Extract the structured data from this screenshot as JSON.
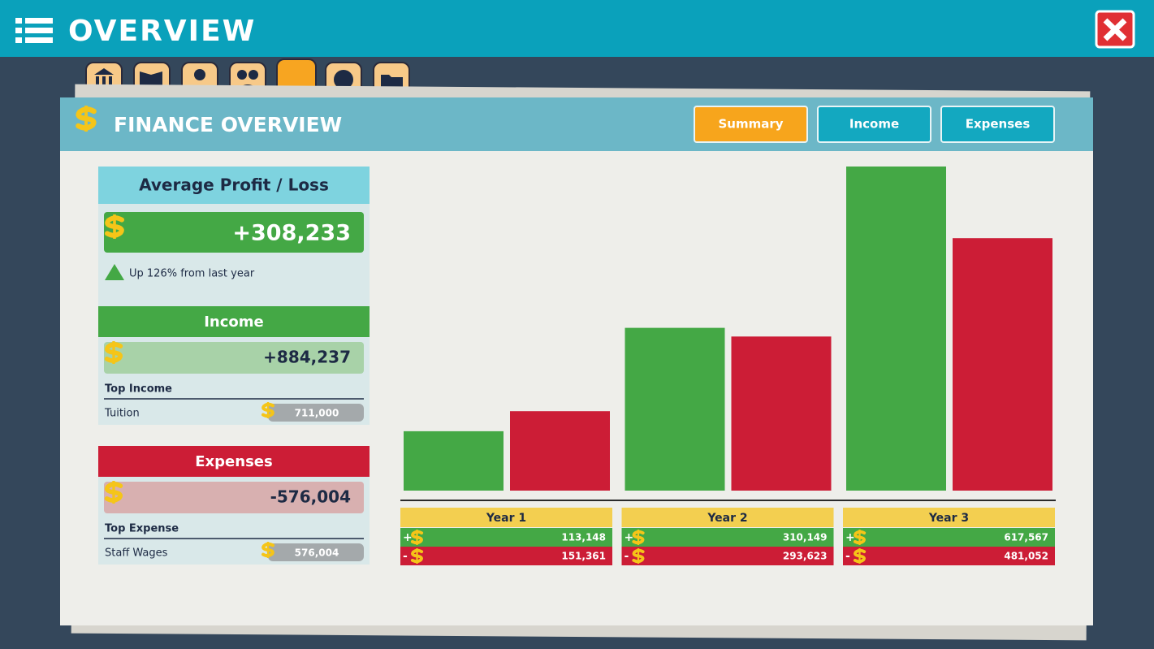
{
  "header": {
    "title": "OVERVIEW"
  },
  "panel": {
    "title": "FINANCE OVERVIEW",
    "tabs": [
      "Summary",
      "Income",
      "Expenses"
    ],
    "active_tab": 0
  },
  "summary": {
    "profit": {
      "title": "Average Profit / Loss",
      "value": "+308,233",
      "change": "Up 126% from last year"
    },
    "income": {
      "title": "Income",
      "value": "+884,237",
      "top_label": "Top Income",
      "top_name": "Tuition",
      "top_value": "711,000"
    },
    "expenses": {
      "title": "Expenses",
      "value": "-576,004",
      "top_label": "Top Expense",
      "top_name": "Staff Wages",
      "top_value": "576,004"
    }
  },
  "chart_data": {
    "type": "bar",
    "categories": [
      "Year 1",
      "Year 2",
      "Year 3"
    ],
    "series": [
      {
        "name": "+",
        "color": "#44a845",
        "values": [
          113148,
          310149,
          617567
        ],
        "value_labels": [
          "113,148",
          "310,149",
          "617,567"
        ]
      },
      {
        "name": "-",
        "color": "#cc1d36",
        "values": [
          151361,
          293623,
          481052
        ],
        "value_labels": [
          "151,361",
          "293,623",
          "481,052"
        ]
      }
    ]
  }
}
